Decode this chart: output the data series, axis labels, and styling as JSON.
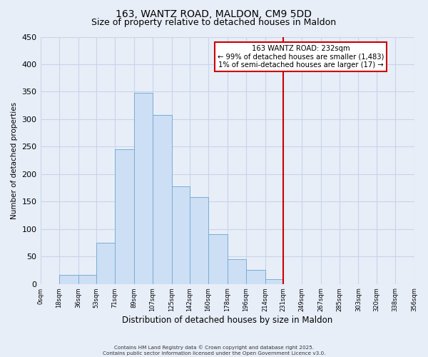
{
  "title": "163, WANTZ ROAD, MALDON, CM9 5DD",
  "subtitle": "Size of property relative to detached houses in Maldon",
  "xlabel": "Distribution of detached houses by size in Maldon",
  "ylabel": "Number of detached properties",
  "bin_labels": [
    "0sqm",
    "18sqm",
    "36sqm",
    "53sqm",
    "71sqm",
    "89sqm",
    "107sqm",
    "125sqm",
    "142sqm",
    "160sqm",
    "178sqm",
    "196sqm",
    "214sqm",
    "231sqm",
    "249sqm",
    "267sqm",
    "285sqm",
    "303sqm",
    "320sqm",
    "338sqm",
    "356sqm"
  ],
  "bin_edges": [
    0,
    18,
    36,
    53,
    71,
    89,
    107,
    125,
    142,
    160,
    178,
    196,
    214,
    231,
    249,
    267,
    285,
    303,
    320,
    338,
    356
  ],
  "bar_heights": [
    0,
    17,
    17,
    75,
    245,
    348,
    307,
    177,
    158,
    90,
    45,
    25,
    8,
    0,
    0,
    0,
    0,
    0,
    0,
    0
  ],
  "bar_color": "#ccdff5",
  "bar_edge_color": "#7badd4",
  "reference_line_x": 231,
  "reference_line_color": "#cc0000",
  "ylim": [
    0,
    450
  ],
  "yticks": [
    0,
    50,
    100,
    150,
    200,
    250,
    300,
    350,
    400,
    450
  ],
  "annotation_title": "163 WANTZ ROAD: 232sqm",
  "annotation_line1": "← 99% of detached houses are smaller (1,483)",
  "annotation_line2": "1% of semi-detached houses are larger (17) →",
  "annotation_box_color": "#ffffff",
  "annotation_box_edge": "#cc0000",
  "footer1": "Contains HM Land Registry data © Crown copyright and database right 2025.",
  "footer2": "Contains public sector information licensed under the Open Government Licence v3.0.",
  "bg_color": "#e8eef8",
  "grid_color": "#c8d4e8",
  "title_fontsize": 10,
  "subtitle_fontsize": 9
}
